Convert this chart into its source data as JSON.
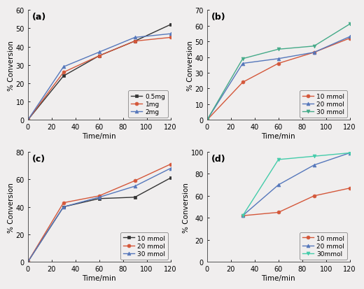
{
  "subplot_a": {
    "label": "(a)",
    "x": [
      0,
      30,
      60,
      90,
      120
    ],
    "series": [
      {
        "name": "0.5mg",
        "color": "#333333",
        "marker": "s",
        "y": [
          0,
          24,
          35,
          43,
          52
        ]
      },
      {
        "name": "1mg",
        "color": "#d4573a",
        "marker": "o",
        "y": [
          0,
          26,
          35,
          43,
          45
        ]
      },
      {
        "name": "2mg",
        "color": "#5577bb",
        "marker": "^",
        "y": [
          0,
          29,
          37,
          45,
          47
        ]
      }
    ],
    "ylim": [
      0,
      60
    ],
    "yticks": [
      0,
      10,
      20,
      30,
      40,
      50,
      60
    ],
    "xticks": [
      0,
      20,
      40,
      60,
      80,
      100,
      120
    ],
    "legend_loc": "lower right",
    "legend_bbox": null
  },
  "subplot_b": {
    "label": "(b)",
    "x": [
      0,
      30,
      60,
      90,
      120
    ],
    "series": [
      {
        "name": "10 mmol",
        "color": "#d4573a",
        "marker": "o",
        "y": [
          0,
          24,
          36,
          43,
          52
        ]
      },
      {
        "name": "20 mmol",
        "color": "#5577bb",
        "marker": "^",
        "y": [
          0,
          36,
          39,
          43,
          53
        ]
      },
      {
        "name": "30 mmol",
        "color": "#44aa88",
        "marker": "v",
        "y": [
          0,
          39,
          45,
          47,
          61
        ]
      }
    ],
    "ylim": [
      0,
      70
    ],
    "yticks": [
      0,
      10,
      20,
      30,
      40,
      50,
      60,
      70
    ],
    "xticks": [
      0,
      20,
      40,
      60,
      80,
      100,
      120
    ],
    "legend_loc": "lower right",
    "legend_bbox": null
  },
  "subplot_c": {
    "label": "(c)",
    "x": [
      0,
      30,
      60,
      90,
      120
    ],
    "series": [
      {
        "name": "10 mmol",
        "color": "#333333",
        "marker": "s",
        "y": [
          0,
          40,
          46,
          47,
          61
        ]
      },
      {
        "name": "20 mmol",
        "color": "#d4573a",
        "marker": "o",
        "y": [
          0,
          43,
          48,
          59,
          71
        ]
      },
      {
        "name": "30 mmol",
        "color": "#5577bb",
        "marker": "^",
        "y": [
          0,
          40,
          47,
          55,
          68
        ]
      }
    ],
    "ylim": [
      0,
      80
    ],
    "yticks": [
      0,
      20,
      40,
      60,
      80
    ],
    "xticks": [
      0,
      20,
      40,
      60,
      80,
      100,
      120
    ],
    "legend_loc": "lower right",
    "legend_bbox": null
  },
  "subplot_d": {
    "label": "(d)",
    "x": [
      30,
      60,
      90,
      120
    ],
    "series": [
      {
        "name": "10 mmol",
        "color": "#d4573a",
        "marker": "o",
        "y": [
          42,
          45,
          60,
          67
        ]
      },
      {
        "name": "20 mmol",
        "color": "#5577bb",
        "marker": "^",
        "y": [
          42,
          70,
          88,
          99
        ]
      },
      {
        "name": "30mmol",
        "color": "#44ccaa",
        "marker": "v",
        "y": [
          42,
          93,
          96,
          99
        ]
      }
    ],
    "ylim": [
      0,
      100
    ],
    "yticks": [
      0,
      20,
      40,
      60,
      80,
      100
    ],
    "xticks": [
      0,
      20,
      40,
      60,
      80,
      100,
      120
    ],
    "legend_loc": "lower right",
    "legend_bbox": null
  },
  "xlabel": "Time/min",
  "ylabel": "% Conversion",
  "background_color": "#f0eeee"
}
